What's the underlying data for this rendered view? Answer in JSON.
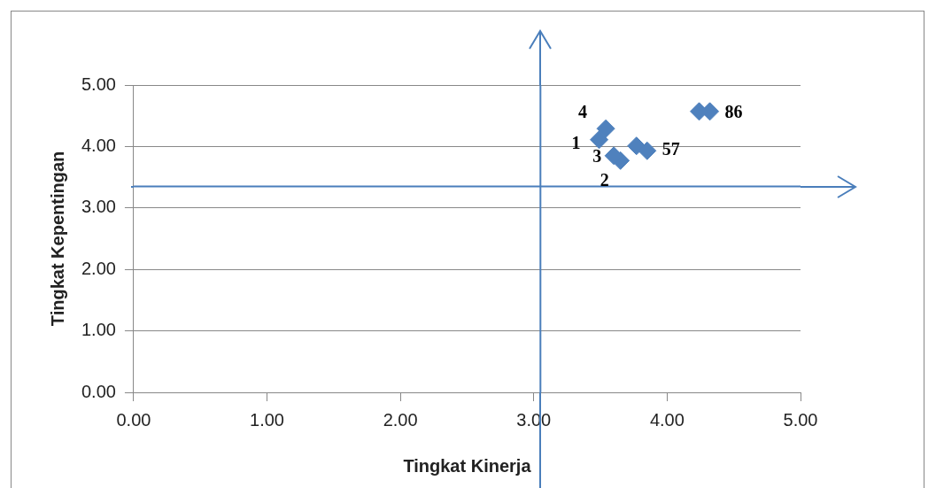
{
  "chart_data": {
    "type": "scatter",
    "xlabel": "Tingkat Kinerja",
    "ylabel": "Tingkat Kepentingan",
    "x": [
      3.49,
      3.65,
      3.6,
      3.54,
      3.77,
      4.32,
      3.85,
      4.24
    ],
    "values": [
      4.11,
      3.77,
      3.85,
      4.29,
      4.01,
      4.57,
      3.93,
      4.57
    ],
    "color": "#4f81bd",
    "marker": "diamond",
    "xlim": [
      0,
      5
    ],
    "ylim": [
      0,
      5
    ],
    "xticks": [
      {
        "value": 0,
        "label": "0.00"
      },
      {
        "value": 1,
        "label": "1.00"
      },
      {
        "value": 2,
        "label": "2.00"
      },
      {
        "value": 3,
        "label": "3.00"
      },
      {
        "value": 4,
        "label": "4.00"
      },
      {
        "value": 5,
        "label": "5.00"
      }
    ],
    "yticks": [
      {
        "value": 0,
        "label": "0.00"
      },
      {
        "value": 1,
        "label": "1.00"
      },
      {
        "value": 2,
        "label": "2.00"
      },
      {
        "value": 3,
        "label": "3.00"
      },
      {
        "value": 4,
        "label": "4.00"
      },
      {
        "value": 5,
        "label": "5.00"
      }
    ],
    "grid": "y",
    "legend": false,
    "ref_lines": [
      {
        "axis": "x",
        "value": 3.05,
        "color": "#4a7ebb"
      },
      {
        "axis": "y",
        "value": 3.35,
        "color": "#4a7ebb"
      }
    ],
    "annotations": [
      {
        "text": "4",
        "x": 3.54,
        "y": 4.29
      },
      {
        "text": "1",
        "x": 3.49,
        "y": 4.11
      },
      {
        "text": "3",
        "x": 3.6,
        "y": 3.85
      },
      {
        "text": "2",
        "x": 3.65,
        "y": 3.77
      },
      {
        "text": "57",
        "x": 3.85,
        "y": 3.93
      },
      {
        "text": "86",
        "x": 4.32,
        "y": 4.57
      }
    ]
  }
}
